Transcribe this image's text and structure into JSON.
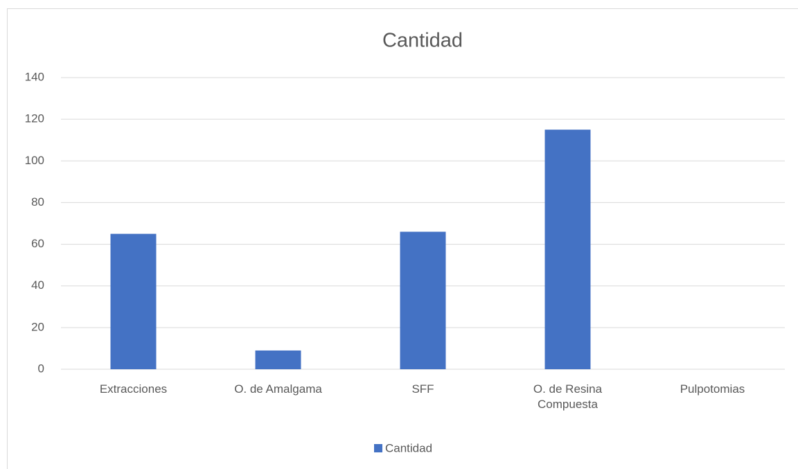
{
  "chart_data": {
    "type": "bar",
    "title": "Cantidad",
    "categories": [
      "Extracciones",
      "O. de Amalgama",
      "SFF",
      "O. de Resina Compuesta",
      "Pulpotomias"
    ],
    "series": [
      {
        "name": "Cantidad",
        "color": "#4472c4",
        "values": [
          65,
          9,
          66,
          115,
          0
        ]
      }
    ],
    "ylim": [
      0,
      140
    ],
    "yticks": [
      0,
      20,
      40,
      60,
      80,
      100,
      120,
      140
    ],
    "grid": true,
    "legend": "bottom"
  }
}
